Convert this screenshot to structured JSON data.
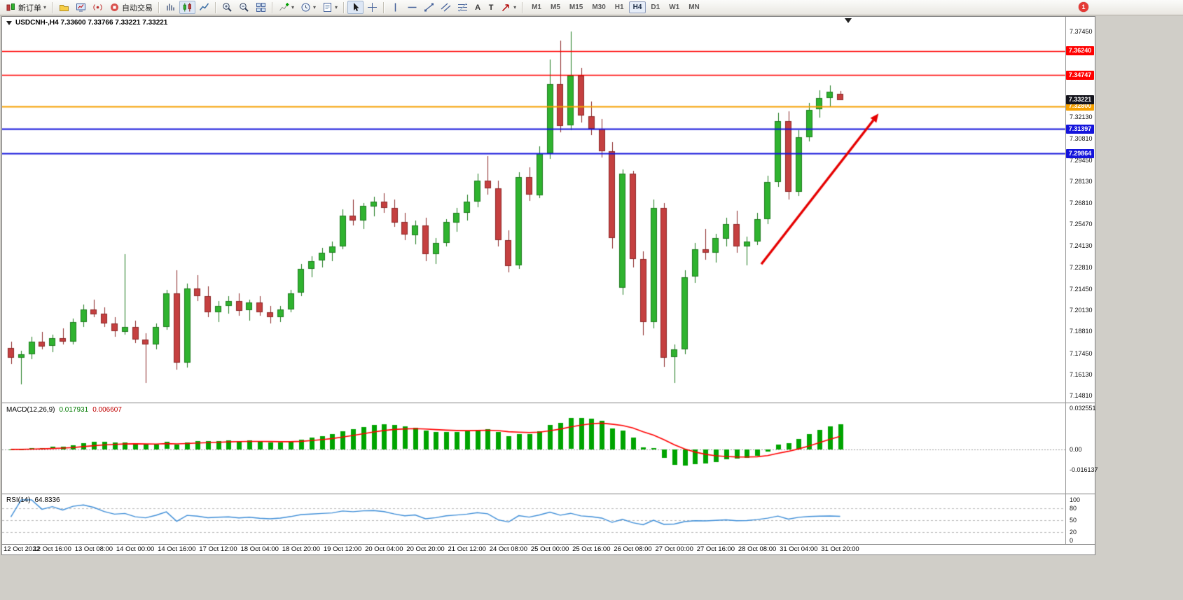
{
  "toolbar": {
    "new_order_label": "新订单",
    "auto_trading_label": "自动交易",
    "text_tool_label": "A",
    "label_tool_label": "T",
    "notification_count": "1",
    "timeframes": [
      "M1",
      "M5",
      "M15",
      "M30",
      "H1",
      "H4",
      "D1",
      "W1",
      "MN"
    ],
    "active_timeframe": "H4"
  },
  "chart": {
    "symbol": "USDCNH-",
    "period": "H4",
    "title_full": "USDCNH-,H4 7.33600 7.33766 7.33221 7.33221",
    "ohlc": {
      "open": "7.33600",
      "high": "7.33766",
      "low": "7.33221",
      "close": "7.33221"
    }
  },
  "colors": {
    "bull": "#2fb32f",
    "bull_border": "#1d7a1d",
    "bear": "#c54040",
    "bear_border": "#8c2626",
    "arrow": "#e60000",
    "macd_histogram": "#00a400",
    "macd_signal": "#ff0000",
    "rsi_line": "#3e8ed8",
    "level_dash": "#b8b8b8",
    "current_tag_bg": "#14141c"
  },
  "chart_data": {
    "type": "candlestick",
    "symbol": "USDCNH-",
    "timeframe": "H4",
    "ylim": [
      7.1448,
      7.3828
    ],
    "y_ticks": [
      "7.37450",
      "7.32130",
      "7.30810",
      "7.29450",
      "7.28130",
      "7.26810",
      "7.25470",
      "7.24130",
      "7.22810",
      "7.21450",
      "7.20130",
      "7.18810",
      "7.17450",
      "7.16130",
      "7.14810"
    ],
    "x_labels": [
      "12 Oct 2022",
      "12 Oct 16:00",
      "13 Oct 08:00",
      "14 Oct 00:00",
      "14 Oct 16:00",
      "17 Oct 12:00",
      "18 Oct 04:00",
      "18 Oct 20:00",
      "19 Oct 12:00",
      "20 Oct 04:00",
      "20 Oct 20:00",
      "21 Oct 12:00",
      "24 Oct 08:00",
      "25 Oct 00:00",
      "25 Oct 16:00",
      "26 Oct 08:00",
      "27 Oct 00:00",
      "27 Oct 16:00",
      "28 Oct 08:00",
      "31 Oct 04:00",
      "31 Oct 20:00"
    ],
    "x_label_every": 4,
    "candles_ohlc": [
      [
        7.178,
        7.182,
        7.168,
        7.172
      ],
      [
        7.172,
        7.176,
        7.155,
        7.174
      ],
      [
        7.174,
        7.185,
        7.171,
        7.182
      ],
      [
        7.182,
        7.188,
        7.177,
        7.179
      ],
      [
        7.179,
        7.186,
        7.175,
        7.184
      ],
      [
        7.184,
        7.19,
        7.18,
        7.182
      ],
      [
        7.182,
        7.196,
        7.18,
        7.194
      ],
      [
        7.194,
        7.205,
        7.191,
        7.202
      ],
      [
        7.202,
        7.208,
        7.197,
        7.199
      ],
      [
        7.199,
        7.203,
        7.191,
        7.193
      ],
      [
        7.193,
        7.197,
        7.185,
        7.188
      ],
      [
        7.188,
        7.236,
        7.186,
        7.191
      ],
      [
        7.191,
        7.195,
        7.181,
        7.183
      ],
      [
        7.183,
        7.187,
        7.156,
        7.18
      ],
      [
        7.18,
        7.193,
        7.177,
        7.191
      ],
      [
        7.191,
        7.214,
        7.189,
        7.212
      ],
      [
        7.212,
        7.226,
        7.164,
        7.169
      ],
      [
        7.169,
        7.218,
        7.166,
        7.215
      ],
      [
        7.215,
        7.223,
        7.207,
        7.21
      ],
      [
        7.21,
        7.216,
        7.197,
        7.2
      ],
      [
        7.2,
        7.207,
        7.194,
        7.204
      ],
      [
        7.204,
        7.21,
        7.199,
        7.207
      ],
      [
        7.207,
        7.212,
        7.198,
        7.201
      ],
      [
        7.201,
        7.208,
        7.195,
        7.206
      ],
      [
        7.206,
        7.21,
        7.198,
        7.2
      ],
      [
        7.2,
        7.204,
        7.193,
        7.197
      ],
      [
        7.197,
        7.204,
        7.194,
        7.202
      ],
      [
        7.202,
        7.214,
        7.2,
        7.212
      ],
      [
        7.212,
        7.23,
        7.21,
        7.227
      ],
      [
        7.227,
        7.235,
        7.222,
        7.232
      ],
      [
        7.232,
        7.24,
        7.228,
        7.237
      ],
      [
        7.237,
        7.244,
        7.232,
        7.241
      ],
      [
        7.241,
        7.264,
        7.239,
        7.26
      ],
      [
        7.26,
        7.27,
        7.254,
        7.257
      ],
      [
        7.257,
        7.268,
        7.252,
        7.266
      ],
      [
        7.266,
        7.272,
        7.26,
        7.269
      ],
      [
        7.269,
        7.274,
        7.262,
        7.265
      ],
      [
        7.265,
        7.27,
        7.253,
        7.256
      ],
      [
        7.256,
        7.262,
        7.245,
        7.248
      ],
      [
        7.248,
        7.257,
        7.242,
        7.254
      ],
      [
        7.254,
        7.259,
        7.232,
        7.236
      ],
      [
        7.236,
        7.246,
        7.23,
        7.243
      ],
      [
        7.243,
        7.258,
        7.241,
        7.256
      ],
      [
        7.256,
        7.265,
        7.25,
        7.262
      ],
      [
        7.262,
        7.273,
        7.257,
        7.269
      ],
      [
        7.269,
        7.286,
        7.265,
        7.282
      ],
      [
        7.282,
        7.297,
        7.273,
        7.277
      ],
      [
        7.277,
        7.282,
        7.241,
        7.245
      ],
      [
        7.245,
        7.251,
        7.225,
        7.229
      ],
      [
        7.229,
        7.287,
        7.227,
        7.284
      ],
      [
        7.284,
        7.29,
        7.269,
        7.273
      ],
      [
        7.273,
        7.303,
        7.271,
        7.299
      ],
      [
        7.299,
        7.357,
        7.295,
        7.342
      ],
      [
        7.342,
        7.369,
        7.312,
        7.316
      ],
      [
        7.316,
        7.3745,
        7.313,
        7.347
      ],
      [
        7.347,
        7.352,
        7.318,
        7.322
      ],
      [
        7.322,
        7.331,
        7.31,
        7.314
      ],
      [
        7.314,
        7.32,
        7.296,
        7.3
      ],
      [
        7.3,
        7.306,
        7.24,
        7.246
      ],
      [
        7.215,
        7.289,
        7.211,
        7.286
      ],
      [
        7.286,
        7.288,
        7.228,
        7.233
      ],
      [
        7.233,
        7.238,
        7.186,
        7.194
      ],
      [
        7.194,
        7.27,
        7.19,
        7.265
      ],
      [
        7.265,
        7.268,
        7.166,
        7.172
      ],
      [
        7.172,
        7.18,
        7.156,
        7.177
      ],
      [
        7.177,
        7.226,
        7.174,
        7.222
      ],
      [
        7.222,
        7.243,
        7.218,
        7.239
      ],
      [
        7.239,
        7.252,
        7.233,
        7.237
      ],
      [
        7.237,
        7.249,
        7.231,
        7.246
      ],
      [
        7.246,
        7.259,
        7.241,
        7.255
      ],
      [
        7.255,
        7.263,
        7.237,
        7.241
      ],
      [
        7.241,
        7.247,
        7.229,
        7.244
      ],
      [
        7.244,
        7.262,
        7.242,
        7.258
      ],
      [
        7.258,
        7.285,
        7.255,
        7.281
      ],
      [
        7.281,
        7.324,
        7.278,
        7.319
      ],
      [
        7.319,
        7.325,
        7.27,
        7.275
      ],
      [
        7.275,
        7.313,
        7.272,
        7.309
      ],
      [
        7.309,
        7.33,
        7.306,
        7.326
      ],
      [
        7.326,
        7.338,
        7.321,
        7.333
      ],
      [
        7.333,
        7.341,
        7.328,
        7.337
      ],
      [
        7.336,
        7.33766,
        7.33221,
        7.33221
      ]
    ],
    "horizontal_lines": [
      {
        "price": 7.3624,
        "label": "7.36240",
        "color": "#ff0000",
        "width": 1.4
      },
      {
        "price": 7.34747,
        "label": "7.34747",
        "color": "#ff0000",
        "width": 1.4
      },
      {
        "price": 7.328,
        "label": "7.32800",
        "color": "#f5a000",
        "width": 2
      },
      {
        "price": 7.31397,
        "label": "7.31397",
        "color": "#1414dc",
        "width": 2
      },
      {
        "price": 7.29864,
        "label": "7.29864",
        "color": "#1414dc",
        "width": 2
      }
    ],
    "current_price_tag": {
      "price": 7.33221,
      "label": "7.33221"
    },
    "trend_arrow": {
      "from_index": 72.4,
      "from_price": 7.23,
      "to_index": 83.7,
      "to_price": 7.3235
    },
    "indicators": {
      "macd": {
        "label": "MACD(12,26,9)",
        "params": [
          12,
          26,
          9
        ],
        "value_main": "0.017931",
        "value_signal": "0.006607",
        "axis_labels": [
          "0.032551",
          "0.00",
          "-0.016137"
        ],
        "axis_max": 0.0326,
        "axis_min": -0.0161
      },
      "rsi": {
        "label": "RSI(14)",
        "period": 14,
        "value": "64.8336",
        "levels": [
          80,
          50,
          20
        ],
        "axis_labels": [
          "100",
          "80",
          "50",
          "20",
          "0"
        ],
        "range": [
          0,
          100
        ]
      }
    }
  }
}
